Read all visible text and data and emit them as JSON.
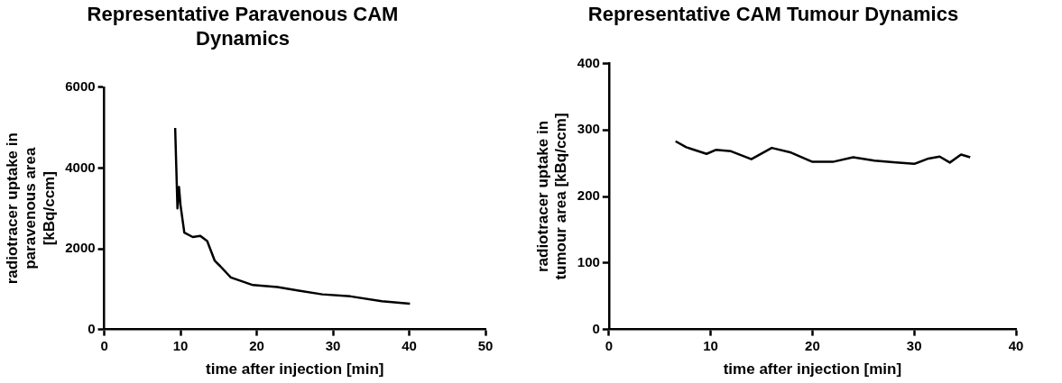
{
  "chart_data": [
    {
      "type": "line",
      "title": "Representative Paravenous CAM Dynamics",
      "xlabel": "time after injection [min]",
      "ylabel": "radiotracer uptake in paravenous area [kBq/ccm]",
      "x": [
        9.3,
        9.6,
        9.8,
        10.0,
        10.5,
        11.6,
        12.6,
        13.5,
        14.5,
        15.2,
        16.6,
        19.5,
        22.7,
        25.5,
        28.6,
        32.3,
        36.4,
        40.1
      ],
      "values": [
        4990,
        3000,
        3530,
        3080,
        2400,
        2290,
        2320,
        2190,
        1700,
        1570,
        1290,
        1100,
        1050,
        960,
        870,
        820,
        700,
        640
      ],
      "color": "#000000",
      "xlim": [
        0,
        50
      ],
      "xticks": [
        0,
        10,
        20,
        30,
        40,
        50
      ],
      "ylim": [
        0,
        6000
      ],
      "yticks": [
        0,
        2000,
        4000,
        6000
      ],
      "grid": false,
      "legend": false,
      "marker": "none"
    },
    {
      "type": "line",
      "title": "Representative CAM Tumour Dynamics",
      "xlabel": "time after injection [min]",
      "ylabel": "radiotracer uptake in tumour area [kBq/ccm]",
      "x": [
        6.55,
        7.6,
        9.6,
        10.5,
        12.0,
        14.0,
        16.0,
        17.9,
        20.0,
        22.0,
        24.0,
        26.1,
        28.2,
        30.0,
        31.4,
        32.5,
        33.5,
        34.6,
        35.5
      ],
      "values": [
        283,
        274,
        264,
        270,
        268,
        256,
        273,
        266,
        252,
        252,
        259,
        254,
        251,
        249,
        257,
        260,
        251,
        263,
        259
      ],
      "color": "#000000",
      "xlim": [
        0,
        40
      ],
      "xticks": [
        0,
        10,
        20,
        30,
        40
      ],
      "ylim": [
        0,
        400
      ],
      "yticks": [
        0,
        100,
        200,
        300,
        400
      ],
      "grid": false,
      "legend": false,
      "marker": "none"
    }
  ]
}
